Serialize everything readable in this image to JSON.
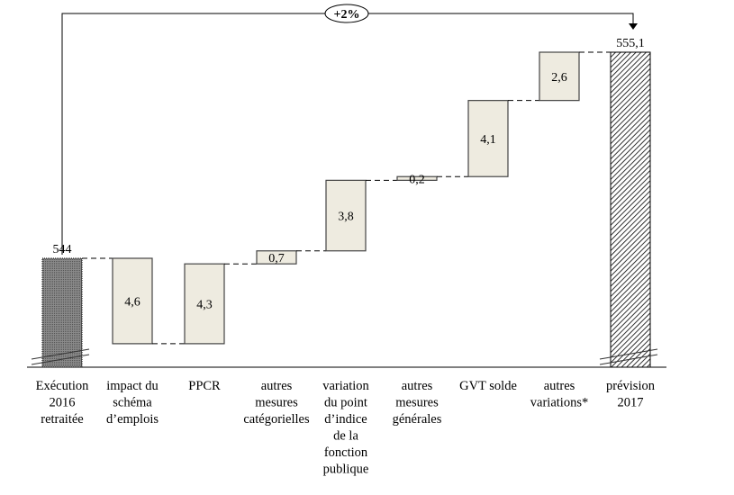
{
  "chart_data": {
    "type": "waterfall",
    "start": {
      "label": "Exécution 2016 retraitée",
      "value": 544,
      "value_label": "544"
    },
    "end": {
      "label": "prévision 2017",
      "value": 555.1,
      "value_label": "555,1"
    },
    "steps": [
      {
        "label": "impact du schéma d’emplois",
        "value": -4.6,
        "value_label": "4,6"
      },
      {
        "label": "PPCR",
        "value": 4.3,
        "value_label": "4,3"
      },
      {
        "label": "autres mesures catégorielles",
        "value": 0.7,
        "value_label": "0,7"
      },
      {
        "label": "variation du point d’indice de la fonction publique",
        "value": 3.8,
        "value_label": "3,8"
      },
      {
        "label": "autres mesures générales",
        "value": 0.2,
        "value_label": "0,2"
      },
      {
        "label": "GVT solde",
        "value": 4.1,
        "value_label": "4,1"
      },
      {
        "label": "autres variations*",
        "value": 2.6,
        "value_label": "2,6"
      }
    ],
    "category_lines": [
      [
        "Exécution",
        "2016",
        "retraitée"
      ],
      [
        "impact du",
        "schéma",
        "d’emplois"
      ],
      [
        "PPCR"
      ],
      [
        "autres",
        "mesures",
        "catégorielles"
      ],
      [
        "variation",
        "du point",
        "d’indice",
        "de la",
        "fonction",
        "publique"
      ],
      [
        "autres",
        "mesures",
        "générales"
      ],
      [
        "GVT solde"
      ],
      [
        "autres",
        "variations*"
      ],
      [
        "prévision",
        "2017"
      ]
    ],
    "annotation": "+2%",
    "broken_axis": true,
    "colors": {
      "step_fill": "#eeebe0",
      "start_fill": "#7a7a7a",
      "end_fill": "hatch"
    }
  }
}
